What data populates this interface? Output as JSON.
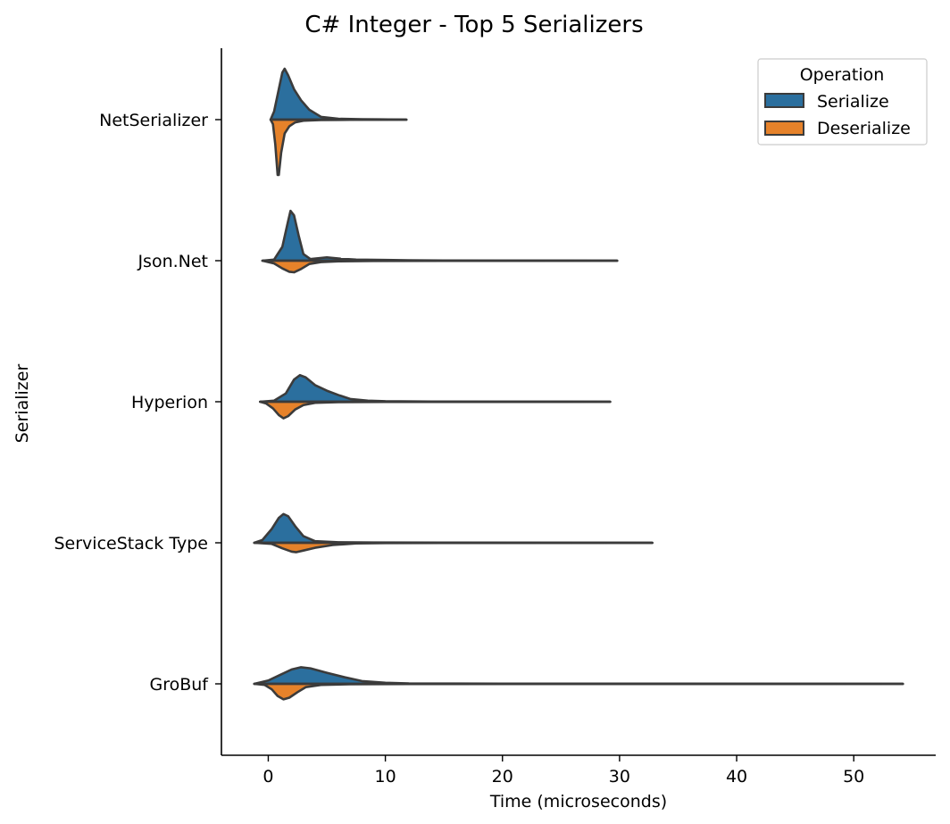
{
  "chart_data": {
    "type": "violin",
    "title": "C# Integer - Top 5 Serializers",
    "xlabel": "Time (microseconds)",
    "ylabel": "Serializer",
    "xlim": [
      -4,
      57
    ],
    "xticks": [
      0,
      10,
      20,
      30,
      40,
      50
    ],
    "categories": [
      "NetSerializer",
      "Json.Net",
      "Hyperion",
      "ServiceStack Type",
      "GroBuf"
    ],
    "legend": {
      "title": "Operation",
      "position": "top-right",
      "entries": [
        "Serialize",
        "Deserialize"
      ]
    },
    "colors": {
      "Serialize": "#2b6f9e",
      "Deserialize": "#e6822a"
    },
    "series": [
      {
        "name": "Serialize",
        "violins": [
          {
            "category": "NetSerializer",
            "range": [
              0.2,
              11.8
            ],
            "density": [
              [
                0.2,
                0
              ],
              [
                0.5,
                0.15
              ],
              [
                0.9,
                0.55
              ],
              [
                1.2,
                0.85
              ],
              [
                1.4,
                0.92
              ],
              [
                1.7,
                0.8
              ],
              [
                2.2,
                0.55
              ],
              [
                2.8,
                0.35
              ],
              [
                3.5,
                0.18
              ],
              [
                4.5,
                0.05
              ],
              [
                6,
                0.015
              ],
              [
                8,
                0.008
              ],
              [
                9.5,
                0.005
              ],
              [
                11.8,
                0
              ]
            ]
          },
          {
            "category": "Json.Net",
            "range": [
              -0.5,
              29.8
            ],
            "density": [
              [
                -0.5,
                0
              ],
              [
                0.5,
                0.02
              ],
              [
                1.2,
                0.25
              ],
              [
                1.7,
                0.72
              ],
              [
                1.9,
                0.9
              ],
              [
                2.2,
                0.82
              ],
              [
                2.6,
                0.45
              ],
              [
                3.0,
                0.12
              ],
              [
                3.6,
                0.03
              ],
              [
                5.0,
                0.06
              ],
              [
                6.2,
                0.035
              ],
              [
                7.5,
                0.02
              ],
              [
                10,
                0.014
              ],
              [
                12,
                0.008
              ],
              [
                15,
                0.004
              ],
              [
                20,
                0.002
              ],
              [
                29.8,
                0
              ]
            ]
          },
          {
            "category": "Hyperion",
            "range": [
              -0.7,
              29.2
            ],
            "density": [
              [
                -0.7,
                0
              ],
              [
                0.5,
                0.02
              ],
              [
                1.5,
                0.15
              ],
              [
                2.2,
                0.4
              ],
              [
                2.7,
                0.48
              ],
              [
                3.2,
                0.44
              ],
              [
                4,
                0.3
              ],
              [
                5,
                0.2
              ],
              [
                6,
                0.12
              ],
              [
                7,
                0.05
              ],
              [
                8.5,
                0.02
              ],
              [
                10,
                0.01
              ],
              [
                14,
                0.004
              ],
              [
                20,
                0.002
              ],
              [
                29.2,
                0
              ]
            ]
          },
          {
            "category": "ServiceStack Type",
            "range": [
              -1.2,
              32.8
            ],
            "density": [
              [
                -1.2,
                0
              ],
              [
                -0.5,
                0.05
              ],
              [
                0.3,
                0.25
              ],
              [
                0.9,
                0.45
              ],
              [
                1.3,
                0.52
              ],
              [
                1.7,
                0.48
              ],
              [
                2.3,
                0.3
              ],
              [
                3,
                0.12
              ],
              [
                4,
                0.03
              ],
              [
                6,
                0.01
              ],
              [
                9,
                0.005
              ],
              [
                15,
                0.003
              ],
              [
                25,
                0.002
              ],
              [
                32.8,
                0
              ]
            ]
          },
          {
            "category": "GroBuf",
            "range": [
              -1.2,
              54.2
            ],
            "density": [
              [
                -1.2,
                0
              ],
              [
                0,
                0.06
              ],
              [
                1,
                0.16
              ],
              [
                2,
                0.26
              ],
              [
                2.8,
                0.3
              ],
              [
                3.6,
                0.28
              ],
              [
                5,
                0.2
              ],
              [
                6.5,
                0.12
              ],
              [
                8,
                0.05
              ],
              [
                10,
                0.02
              ],
              [
                12,
                0.008
              ],
              [
                20,
                0.004
              ],
              [
                35,
                0.003
              ],
              [
                54.2,
                0
              ]
            ]
          }
        ]
      },
      {
        "name": "Deserialize",
        "violins": [
          {
            "category": "NetSerializer",
            "range": [
              0.2,
              11.8
            ],
            "density": [
              [
                0.2,
                0
              ],
              [
                0.4,
                0.08
              ],
              [
                0.6,
                0.45
              ],
              [
                0.8,
                1.0
              ],
              [
                0.9,
                1.0
              ],
              [
                1.1,
                0.6
              ],
              [
                1.4,
                0.25
              ],
              [
                1.8,
                0.12
              ],
              [
                2.3,
                0.05
              ],
              [
                3,
                0.02
              ],
              [
                4.5,
                0.008
              ],
              [
                7,
                0.004
              ],
              [
                11.8,
                0
              ]
            ]
          },
          {
            "category": "Json.Net",
            "range": [
              -0.5,
              29.8
            ],
            "density": [
              [
                -0.5,
                0
              ],
              [
                0.5,
                0.05
              ],
              [
                1.2,
                0.14
              ],
              [
                1.8,
                0.2
              ],
              [
                2.2,
                0.21
              ],
              [
                2.8,
                0.15
              ],
              [
                3.5,
                0.06
              ],
              [
                4.5,
                0.025
              ],
              [
                6,
                0.012
              ],
              [
                9,
                0.006
              ],
              [
                15,
                0.003
              ],
              [
                29.8,
                0
              ]
            ]
          },
          {
            "category": "Hyperion",
            "range": [
              -0.7,
              29.2
            ],
            "density": [
              [
                -0.7,
                0
              ],
              [
                -0.2,
                0.03
              ],
              [
                0.4,
                0.12
              ],
              [
                0.9,
                0.24
              ],
              [
                1.3,
                0.3
              ],
              [
                1.7,
                0.26
              ],
              [
                2.3,
                0.14
              ],
              [
                3,
                0.06
              ],
              [
                4,
                0.02
              ],
              [
                6,
                0.008
              ],
              [
                10,
                0.004
              ],
              [
                29.2,
                0
              ]
            ]
          },
          {
            "category": "ServiceStack Type",
            "range": [
              -1.2,
              32.8
            ],
            "density": [
              [
                -1.2,
                0
              ],
              [
                0.3,
                0.02
              ],
              [
                1.2,
                0.1
              ],
              [
                2,
                0.16
              ],
              [
                2.4,
                0.17
              ],
              [
                3,
                0.14
              ],
              [
                4,
                0.09
              ],
              [
                5.5,
                0.04
              ],
              [
                7.5,
                0.012
              ],
              [
                10,
                0.005
              ],
              [
                15,
                0.003
              ],
              [
                32.8,
                0
              ]
            ]
          },
          {
            "category": "GroBuf",
            "range": [
              -1.2,
              54.2
            ],
            "density": [
              [
                -1.2,
                0
              ],
              [
                -0.3,
                0.02
              ],
              [
                0.3,
                0.1
              ],
              [
                0.8,
                0.22
              ],
              [
                1.3,
                0.28
              ],
              [
                1.8,
                0.25
              ],
              [
                2.5,
                0.15
              ],
              [
                3.2,
                0.06
              ],
              [
                4.5,
                0.02
              ],
              [
                7,
                0.008
              ],
              [
                12,
                0.004
              ],
              [
                25,
                0.002
              ],
              [
                54.2,
                0
              ]
            ]
          }
        ]
      }
    ]
  }
}
